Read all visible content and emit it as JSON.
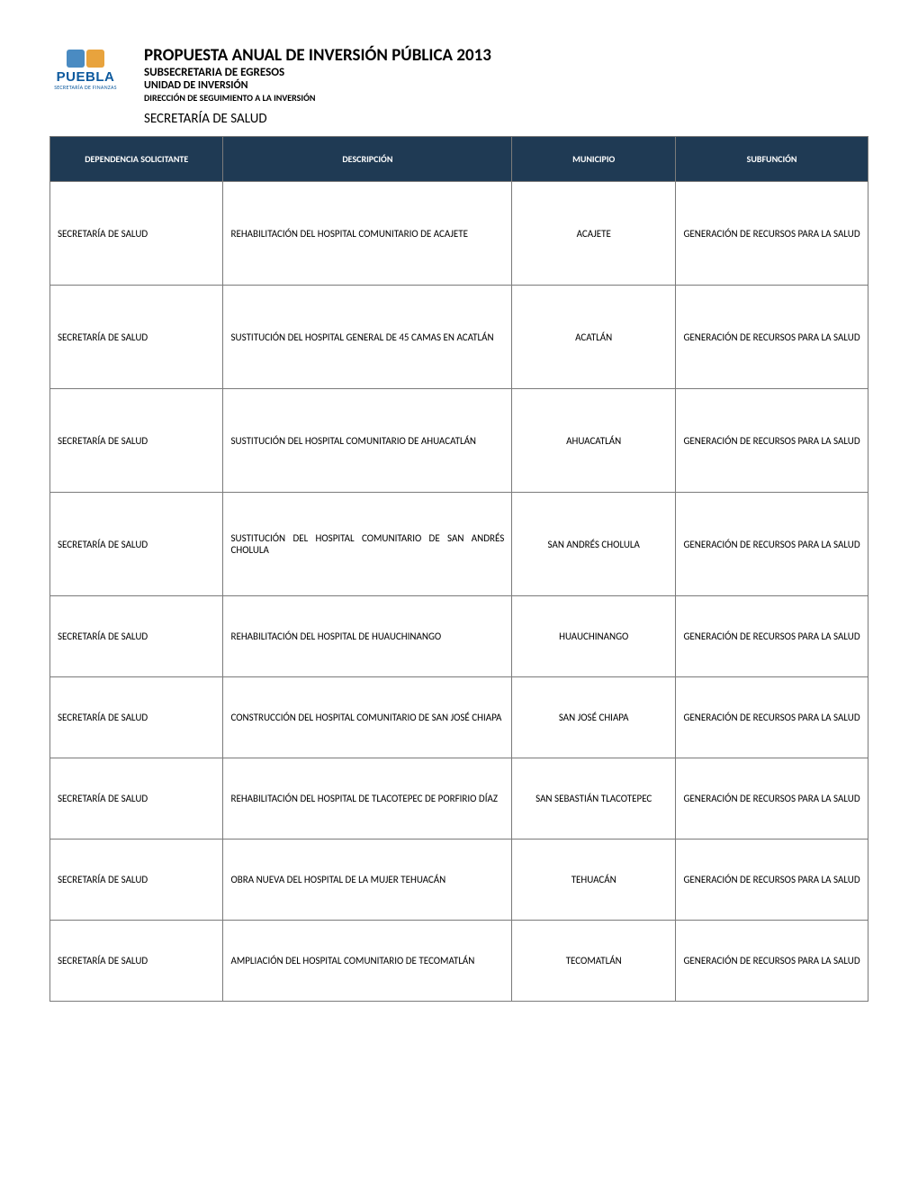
{
  "header": {
    "logo_brand": "PUEBLA",
    "logo_sub": "SECRETARÍA DE FINANZAS",
    "title_main": "PROPUESTA ANUAL DE INVERSIÓN PÚBLICA 2013",
    "title_sub1": "SUBSECRETARIA DE EGRESOS",
    "title_sub2": "UNIDAD DE INVERSIÓN",
    "title_sub3": "DIRECCIÓN DE SEGUIMIENTO A LA INVERSIÓN",
    "secretaria": "SECRETARÍA DE SALUD"
  },
  "table": {
    "columns": [
      "DEPENDENCIA SOLICITANTE",
      "DESCRIPCIÓN",
      "MUNICIPIO",
      "SUBFUNCIÓN"
    ],
    "rows": [
      {
        "dep": "SECRETARÍA DE SALUD",
        "desc": "REHABILITACIÓN DEL HOSPITAL COMUNITARIO DE ACAJETE",
        "mun": "ACAJETE",
        "sub": "GENERACIÓN DE RECURSOS PARA LA SALUD",
        "h": "tall"
      },
      {
        "dep": "SECRETARÍA DE SALUD",
        "desc": "SUSTITUCIÓN DEL HOSPITAL GENERAL DE 45 CAMAS EN ACATLÁN",
        "mun": "ACATLÁN",
        "sub": "GENERACIÓN DE RECURSOS PARA LA SALUD",
        "h": "tall"
      },
      {
        "dep": "SECRETARÍA DE SALUD",
        "desc": "SUSTITUCIÓN DEL HOSPITAL COMUNITARIO DE AHUACATLÁN",
        "mun": "AHUACATLÁN",
        "sub": "GENERACIÓN DE RECURSOS PARA LA SALUD",
        "h": "tall"
      },
      {
        "dep": "SECRETARÍA DE SALUD",
        "desc": "SUSTITUCIÓN DEL HOSPITAL COMUNITARIO DE SAN ANDRÉS CHOLULA",
        "mun": "SAN ANDRÉS CHOLULA",
        "sub": "GENERACIÓN DE RECURSOS PARA LA SALUD",
        "h": "tall"
      },
      {
        "dep": "SECRETARÍA DE SALUD",
        "desc": "REHABILITACIÓN DEL HOSPITAL DE HUAUCHINANGO",
        "mun": "HUAUCHINANGO",
        "sub": "GENERACIÓN DE RECURSOS PARA LA SALUD",
        "h": "med"
      },
      {
        "dep": "SECRETARÍA DE SALUD",
        "desc": "CONSTRUCCIÓN DEL HOSPITAL COMUNITARIO DE SAN JOSÉ CHIAPA",
        "mun": "SAN JOSÉ CHIAPA",
        "sub": "GENERACIÓN DE RECURSOS PARA LA SALUD",
        "h": "med"
      },
      {
        "dep": "SECRETARÍA DE SALUD",
        "desc": "REHABILITACIÓN DEL HOSPITAL DE TLACOTEPEC DE PORFIRIO DÍAZ",
        "mun": "SAN SEBASTIÁN TLACOTEPEC",
        "sub": "GENERACIÓN DE RECURSOS PARA LA SALUD",
        "h": "med"
      },
      {
        "dep": "SECRETARÍA DE SALUD",
        "desc": "OBRA NUEVA DEL HOSPITAL DE LA MUJER TEHUACÁN",
        "mun": "TEHUACÁN",
        "sub": "GENERACIÓN DE RECURSOS PARA LA SALUD",
        "h": "med"
      },
      {
        "dep": "SECRETARÍA DE SALUD",
        "desc": "AMPLIACIÓN DEL HOSPITAL COMUNITARIO DE TECOMATLÁN",
        "mun": "TECOMATLÁN",
        "sub": "GENERACIÓN DE RECURSOS PARA LA SALUD",
        "h": "med"
      }
    ]
  },
  "colors": {
    "header_bg": "#1f3a54",
    "header_fg": "#ffffff",
    "border": "#7a7a7a",
    "logo_primary": "#0d5a9e"
  }
}
